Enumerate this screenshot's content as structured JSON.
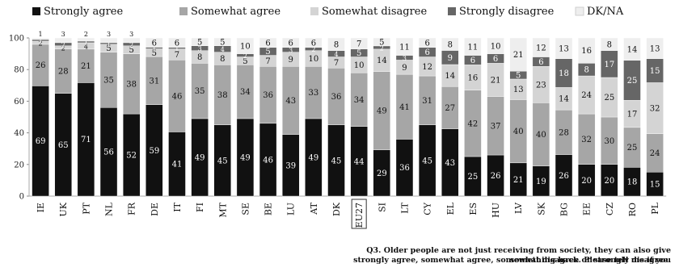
{
  "chart_data": {
    "type": "bar",
    "stacked": true,
    "legend_position": "top",
    "ylim": [
      0,
      100
    ],
    "yticks": [
      0,
      20,
      40,
      60,
      80,
      100
    ],
    "grid": false,
    "highlighted_category": "EU27",
    "series": [
      {
        "name": "Strongly agree",
        "color": "#111111",
        "values": [
          69,
          65,
          71,
          56,
          52,
          59,
          41,
          49,
          45,
          49,
          46,
          39,
          49,
          45,
          44,
          29,
          36,
          45,
          43,
          25,
          26,
          21,
          19,
          26,
          20,
          20,
          18,
          15
        ]
      },
      {
        "name": "Somewhat agree",
        "color": "#a6a6a6",
        "values": [
          26,
          28,
          21,
          35,
          38,
          31,
          46,
          35,
          38,
          34,
          36,
          43,
          33,
          36,
          34,
          49,
          41,
          31,
          27,
          42,
          37,
          40,
          40,
          28,
          32,
          30,
          25,
          24
        ]
      },
      {
        "name": "Somewhat disagree",
        "color": "#d4d4d4",
        "values": [
          2,
          2,
          4,
          5,
          5,
          5,
          7,
          8,
          8,
          5,
          7,
          9,
          10,
          7,
          10,
          14,
          9,
          12,
          14,
          16,
          21,
          13,
          23,
          14,
          24,
          25,
          17,
          32
        ]
      },
      {
        "name": "Strongly disagree",
        "color": "#666666",
        "values": [
          1,
          2,
          1,
          1,
          2,
          1,
          1,
          3,
          4,
          2,
          5,
          3,
          2,
          4,
          5,
          2,
          3,
          6,
          9,
          6,
          6,
          5,
          6,
          18,
          8,
          17,
          25,
          15
        ]
      },
      {
        "name": "DK/NA",
        "color": "#eeeeee",
        "values": [
          1,
          3,
          2,
          3,
          3,
          6,
          6,
          5,
          5,
          10,
          6,
          6,
          6,
          8,
          7,
          5,
          11,
          6,
          8,
          11,
          10,
          21,
          12,
          13,
          16,
          8,
          14,
          13
        ]
      }
    ],
    "categories": [
      "IE",
      "UK",
      "PT",
      "NL",
      "FR",
      "DE",
      "IT",
      "FI",
      "MT",
      "SE",
      "BE",
      "LU",
      "AT",
      "DK",
      "EU27",
      "SI",
      "LT",
      "CY",
      "EL",
      "ES",
      "HU",
      "LV",
      "SK",
      "BG",
      "EE",
      "CZ",
      "RO",
      "PL"
    ]
  },
  "footnote": {
    "line1": "Q3. Older people are not just receiving from society, they can also give something back. Please tell me if you",
    "line2": "strongly agree, somewhat agree, somewhat disagree or strongly disagree."
  }
}
